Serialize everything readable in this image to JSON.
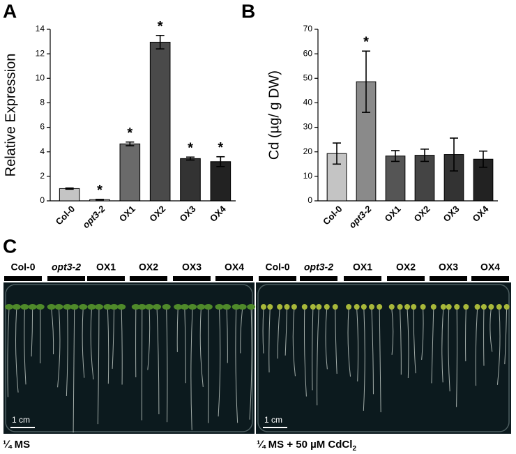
{
  "chart_data": [
    {
      "type": "bar",
      "panel": "A",
      "ylabel": "Relative Expression",
      "categories": [
        "Col-0",
        "opt3-2",
        "OX1",
        "OX2",
        "OX3",
        "OX4"
      ],
      "italic_categories": [
        "opt3-2"
      ],
      "values": [
        1.0,
        0.1,
        4.65,
        12.95,
        3.45,
        3.2
      ],
      "errors": [
        0.05,
        0.02,
        0.15,
        0.55,
        0.12,
        0.4
      ],
      "annotations": [
        null,
        "*",
        "*",
        "*",
        "*",
        "*"
      ],
      "colors": [
        "#c4c4c4",
        "#dcdcdc",
        "#6a6a6a",
        "#4a4a4a",
        "#333333",
        "#222222"
      ],
      "ylim": [
        0,
        14
      ],
      "yticks": [
        0,
        2,
        4,
        6,
        8,
        10,
        12,
        14
      ]
    },
    {
      "type": "bar",
      "panel": "B",
      "ylabel": "Cd (µg/ g DW)",
      "categories": [
        "Col-0",
        "opt3-2",
        "OX1",
        "OX2",
        "OX3",
        "OX4"
      ],
      "italic_categories": [
        "opt3-2"
      ],
      "values": [
        19.3,
        48.6,
        18.3,
        18.6,
        18.9,
        17.0
      ],
      "errors": [
        4.3,
        12.5,
        2.2,
        2.5,
        6.7,
        3.3
      ],
      "annotations": [
        null,
        "*",
        null,
        null,
        null,
        null
      ],
      "colors": [
        "#c4c4c4",
        "#8a8a8a",
        "#555555",
        "#444444",
        "#333333",
        "#222222"
      ],
      "ylim": [
        0,
        70
      ],
      "yticks": [
        0,
        10,
        20,
        30,
        40,
        50,
        60,
        70
      ]
    }
  ],
  "photo": {
    "panel": "C",
    "plates": [
      {
        "genotypes": [
          "Col-0",
          "opt3-2",
          "OX1",
          "OX2",
          "OX3",
          "OX4"
        ],
        "scale_bar": "1 cm",
        "condition": "¼ MS",
        "condition_subscript": null
      },
      {
        "genotypes": [
          "Col-0",
          "opt3-2",
          "OX1",
          "OX2",
          "OX3",
          "OX4"
        ],
        "scale_bar": "1 cm",
        "condition": "¼ MS + 50 µM CdCl",
        "condition_subscript": "2"
      }
    ]
  }
}
